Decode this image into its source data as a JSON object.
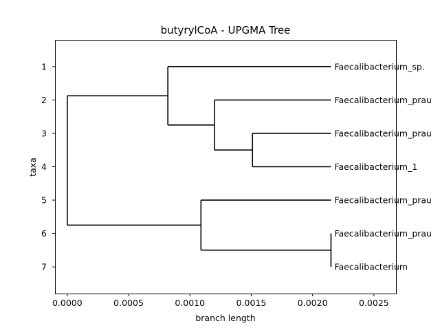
{
  "chart_data": {
    "type": "dendrogram",
    "title": "butyrylCoA - UPGMA Tree",
    "xlabel": "branch length",
    "ylabel": "taxa",
    "xlim": [
      -0.0001,
      0.00268
    ],
    "ylim": [
      7.8,
      0.2
    ],
    "x_ticks": [
      0.0,
      0.0005,
      0.001,
      0.0015,
      0.002,
      0.0025
    ],
    "x_tick_labels": [
      "0.0000",
      "0.0005",
      "0.0010",
      "0.0015",
      "0.0020",
      "0.0025"
    ],
    "y_ticks": [
      1,
      2,
      3,
      4,
      5,
      6,
      7
    ],
    "y_tick_labels": [
      "1",
      "2",
      "3",
      "4",
      "5",
      "6",
      "7"
    ],
    "leaf_tip_x": 0.00215,
    "leaves": [
      {
        "y": 1,
        "label": "Faecalibacterium_sp."
      },
      {
        "y": 2,
        "label": "Faecalibacterium_prau"
      },
      {
        "y": 3,
        "label": "Faecalibacterium_prau"
      },
      {
        "y": 4,
        "label": "Faecalibacterium_1"
      },
      {
        "y": 5,
        "label": "Faecalibacterium_prau"
      },
      {
        "y": 6,
        "label": "Faecalibacterium_prau"
      },
      {
        "y": 7,
        "label": "Faecalibacterium"
      }
    ],
    "nodes": [
      {
        "id": "n34",
        "x": 0.00151,
        "children": [
          "leaf3",
          "leaf4"
        ]
      },
      {
        "id": "n234",
        "x": 0.0012,
        "children": [
          "leaf2",
          "n34"
        ]
      },
      {
        "id": "n1234",
        "x": 0.00082,
        "children": [
          "leaf1",
          "n234"
        ]
      },
      {
        "id": "n67",
        "x": 0.00215,
        "children": [
          "leaf6",
          "leaf7"
        ]
      },
      {
        "id": "n567",
        "x": 0.00109,
        "children": [
          "leaf5",
          "n67"
        ]
      },
      {
        "id": "root",
        "x": 0.0,
        "children": [
          "n1234",
          "n567"
        ]
      }
    ],
    "grid": false,
    "legend": false
  }
}
